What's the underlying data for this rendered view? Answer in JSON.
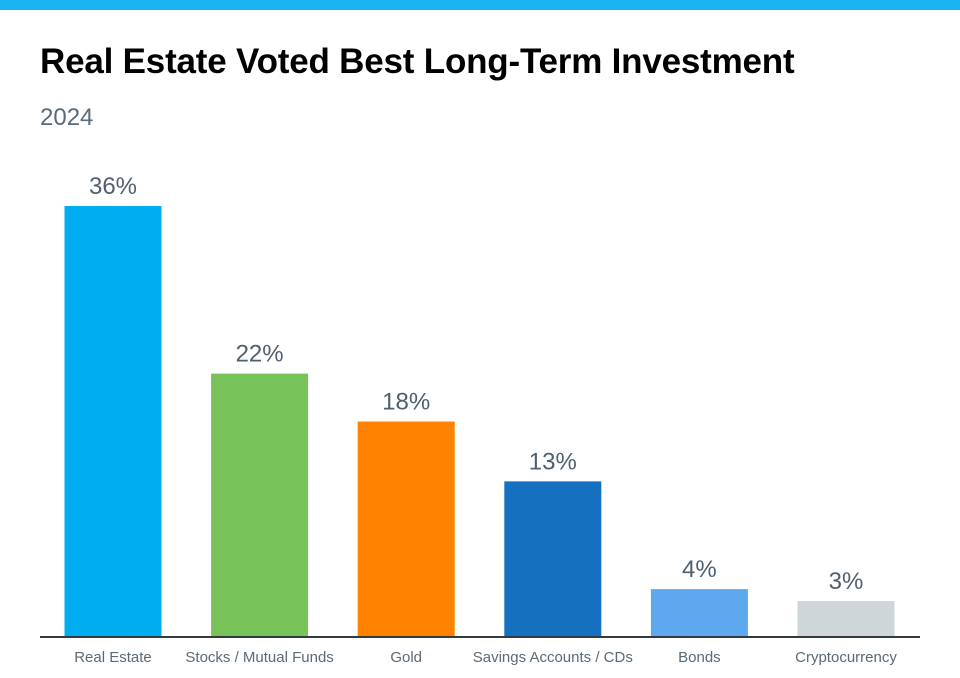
{
  "chart_data": {
    "type": "bar",
    "title": "Real Estate Voted Best Long-Term Investment",
    "subtitle": "2024",
    "categories": [
      "Real Estate",
      "Stocks / Mutual Funds",
      "Gold",
      "Savings Accounts / CDs",
      "Bonds",
      "Cryptocurrency"
    ],
    "values": [
      36,
      22,
      18,
      13,
      4,
      3
    ],
    "data_labels": [
      "36%",
      "22%",
      "18%",
      "13%",
      "4%",
      "3%"
    ],
    "colors": [
      "#00aeef",
      "#77c35a",
      "#ff8200",
      "#1570c0",
      "#5ea8ee",
      "#cfd6da"
    ],
    "xlabel": "",
    "ylabel": "",
    "ylim": [
      0,
      36
    ],
    "grid": false,
    "legend": "none"
  }
}
